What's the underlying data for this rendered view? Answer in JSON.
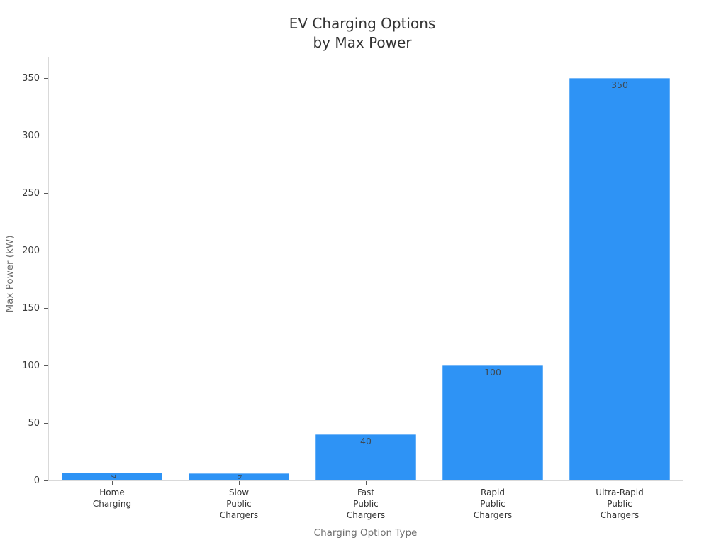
{
  "title": {
    "line1": "EV Charging Options",
    "line2": "by Max Power"
  },
  "chart_data": {
    "type": "bar",
    "title": "EV Charging Options by Max Power",
    "xlabel": "Charging Option Type",
    "ylabel": "Max Power (kW)",
    "categories": [
      "Home Charging",
      "Slow Public Chargers",
      "Fast Public Chargers",
      "Rapid Public Chargers",
      "Ultra-Rapid Public Chargers"
    ],
    "category_lines": [
      [
        "Home",
        "Charging"
      ],
      [
        "Slow",
        "Public",
        "Chargers"
      ],
      [
        "Fast",
        "Public",
        "Chargers"
      ],
      [
        "Rapid",
        "Public",
        "Chargers"
      ],
      [
        "Ultra-Rapid",
        "Public",
        "Chargers"
      ]
    ],
    "values": [
      7,
      6,
      40,
      100,
      350
    ],
    "bar_labels": [
      "7",
      "6",
      "40",
      "100",
      "350"
    ],
    "yticks": [
      0,
      50,
      100,
      150,
      200,
      250,
      300,
      350
    ],
    "ylim": [
      0,
      368
    ],
    "grid": false,
    "legend": null,
    "bar_color": "#2e93f5",
    "bar_label_color": "#3d4a56",
    "axis_line_color": "#d9d9d9",
    "tick_color": "#5a5a5a",
    "tick_label_color": "#3a3a3a",
    "axis_title_color": "#6e6e6e",
    "title_color": "#333333"
  }
}
